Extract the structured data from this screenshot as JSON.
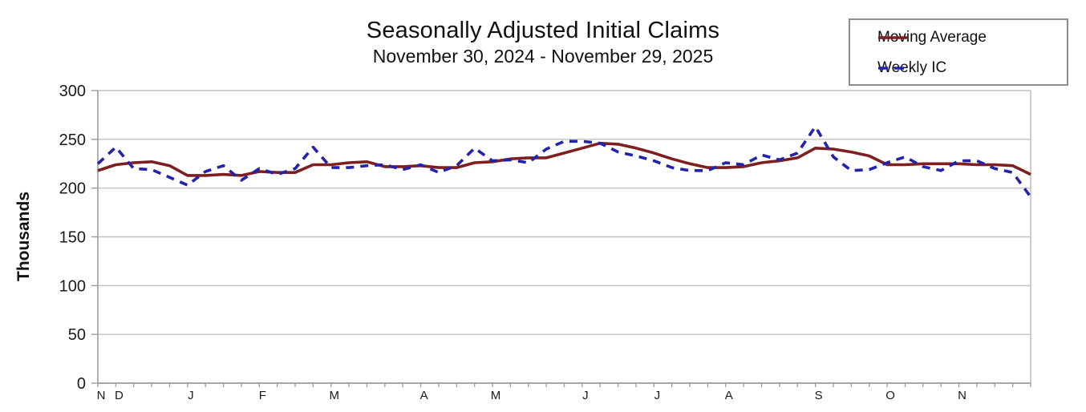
{
  "chart_data": {
    "type": "line",
    "title": "Seasonally Adjusted Initial Claims",
    "subtitle": "November 30, 2024 - November 29, 2025",
    "ylabel": "Thousands",
    "ylim": [
      0,
      300
    ],
    "yticks": [
      0,
      50,
      100,
      150,
      200,
      250,
      300
    ],
    "grid": "horizontal-gridlines-on",
    "legend_position": "top-right",
    "x_unit": "weekly (53 weekly observations)",
    "month_tick_labels": [
      {
        "label": "N",
        "week": 0
      },
      {
        "label": "D",
        "week": 1
      },
      {
        "label": "J",
        "week": 5
      },
      {
        "label": "F",
        "week": 9
      },
      {
        "label": "M",
        "week": 13
      },
      {
        "label": "A",
        "week": 18
      },
      {
        "label": "M",
        "week": 22
      },
      {
        "label": "J",
        "week": 27
      },
      {
        "label": "J",
        "week": 31
      },
      {
        "label": "A",
        "week": 35
      },
      {
        "label": "S",
        "week": 40
      },
      {
        "label": "O",
        "week": 44
      },
      {
        "label": "N",
        "week": 48
      }
    ],
    "series": [
      {
        "name": "Moving Average",
        "style": "solid",
        "color": "#7E1F1F",
        "values": [
          218,
          224,
          226,
          227,
          223,
          213,
          213,
          214,
          213,
          217,
          216,
          216,
          224,
          224,
          226,
          227,
          222,
          222,
          223,
          221,
          221,
          226,
          227,
          230,
          231,
          231,
          236,
          241,
          246,
          245,
          241,
          236,
          230,
          225,
          221,
          221,
          222,
          226,
          228,
          231,
          241,
          240,
          237,
          233,
          224,
          224,
          225,
          225,
          225,
          224,
          224,
          223,
          214
        ]
      },
      {
        "name": "Weekly IC",
        "style": "dashed",
        "color": "#2222AD",
        "values": [
          225,
          242,
          220,
          219,
          211,
          203,
          217,
          223,
          208,
          220,
          214,
          220,
          242,
          221,
          221,
          223,
          224,
          219,
          224,
          216,
          223,
          241,
          228,
          229,
          226,
          240,
          248,
          248,
          246,
          237,
          233,
          228,
          221,
          218,
          218,
          226,
          224,
          234,
          229,
          236,
          263,
          232,
          218,
          219,
          226,
          232,
          222,
          218,
          228,
          228,
          220,
          216,
          191
        ]
      }
    ],
    "style": {
      "gridline_color": "#C2C2C2",
      "axis_color": "#9C9C9C",
      "tick_color": "#9C9C9C",
      "text_color": "#1A1A1A",
      "legend_border_color": "#8C8C8C"
    }
  }
}
